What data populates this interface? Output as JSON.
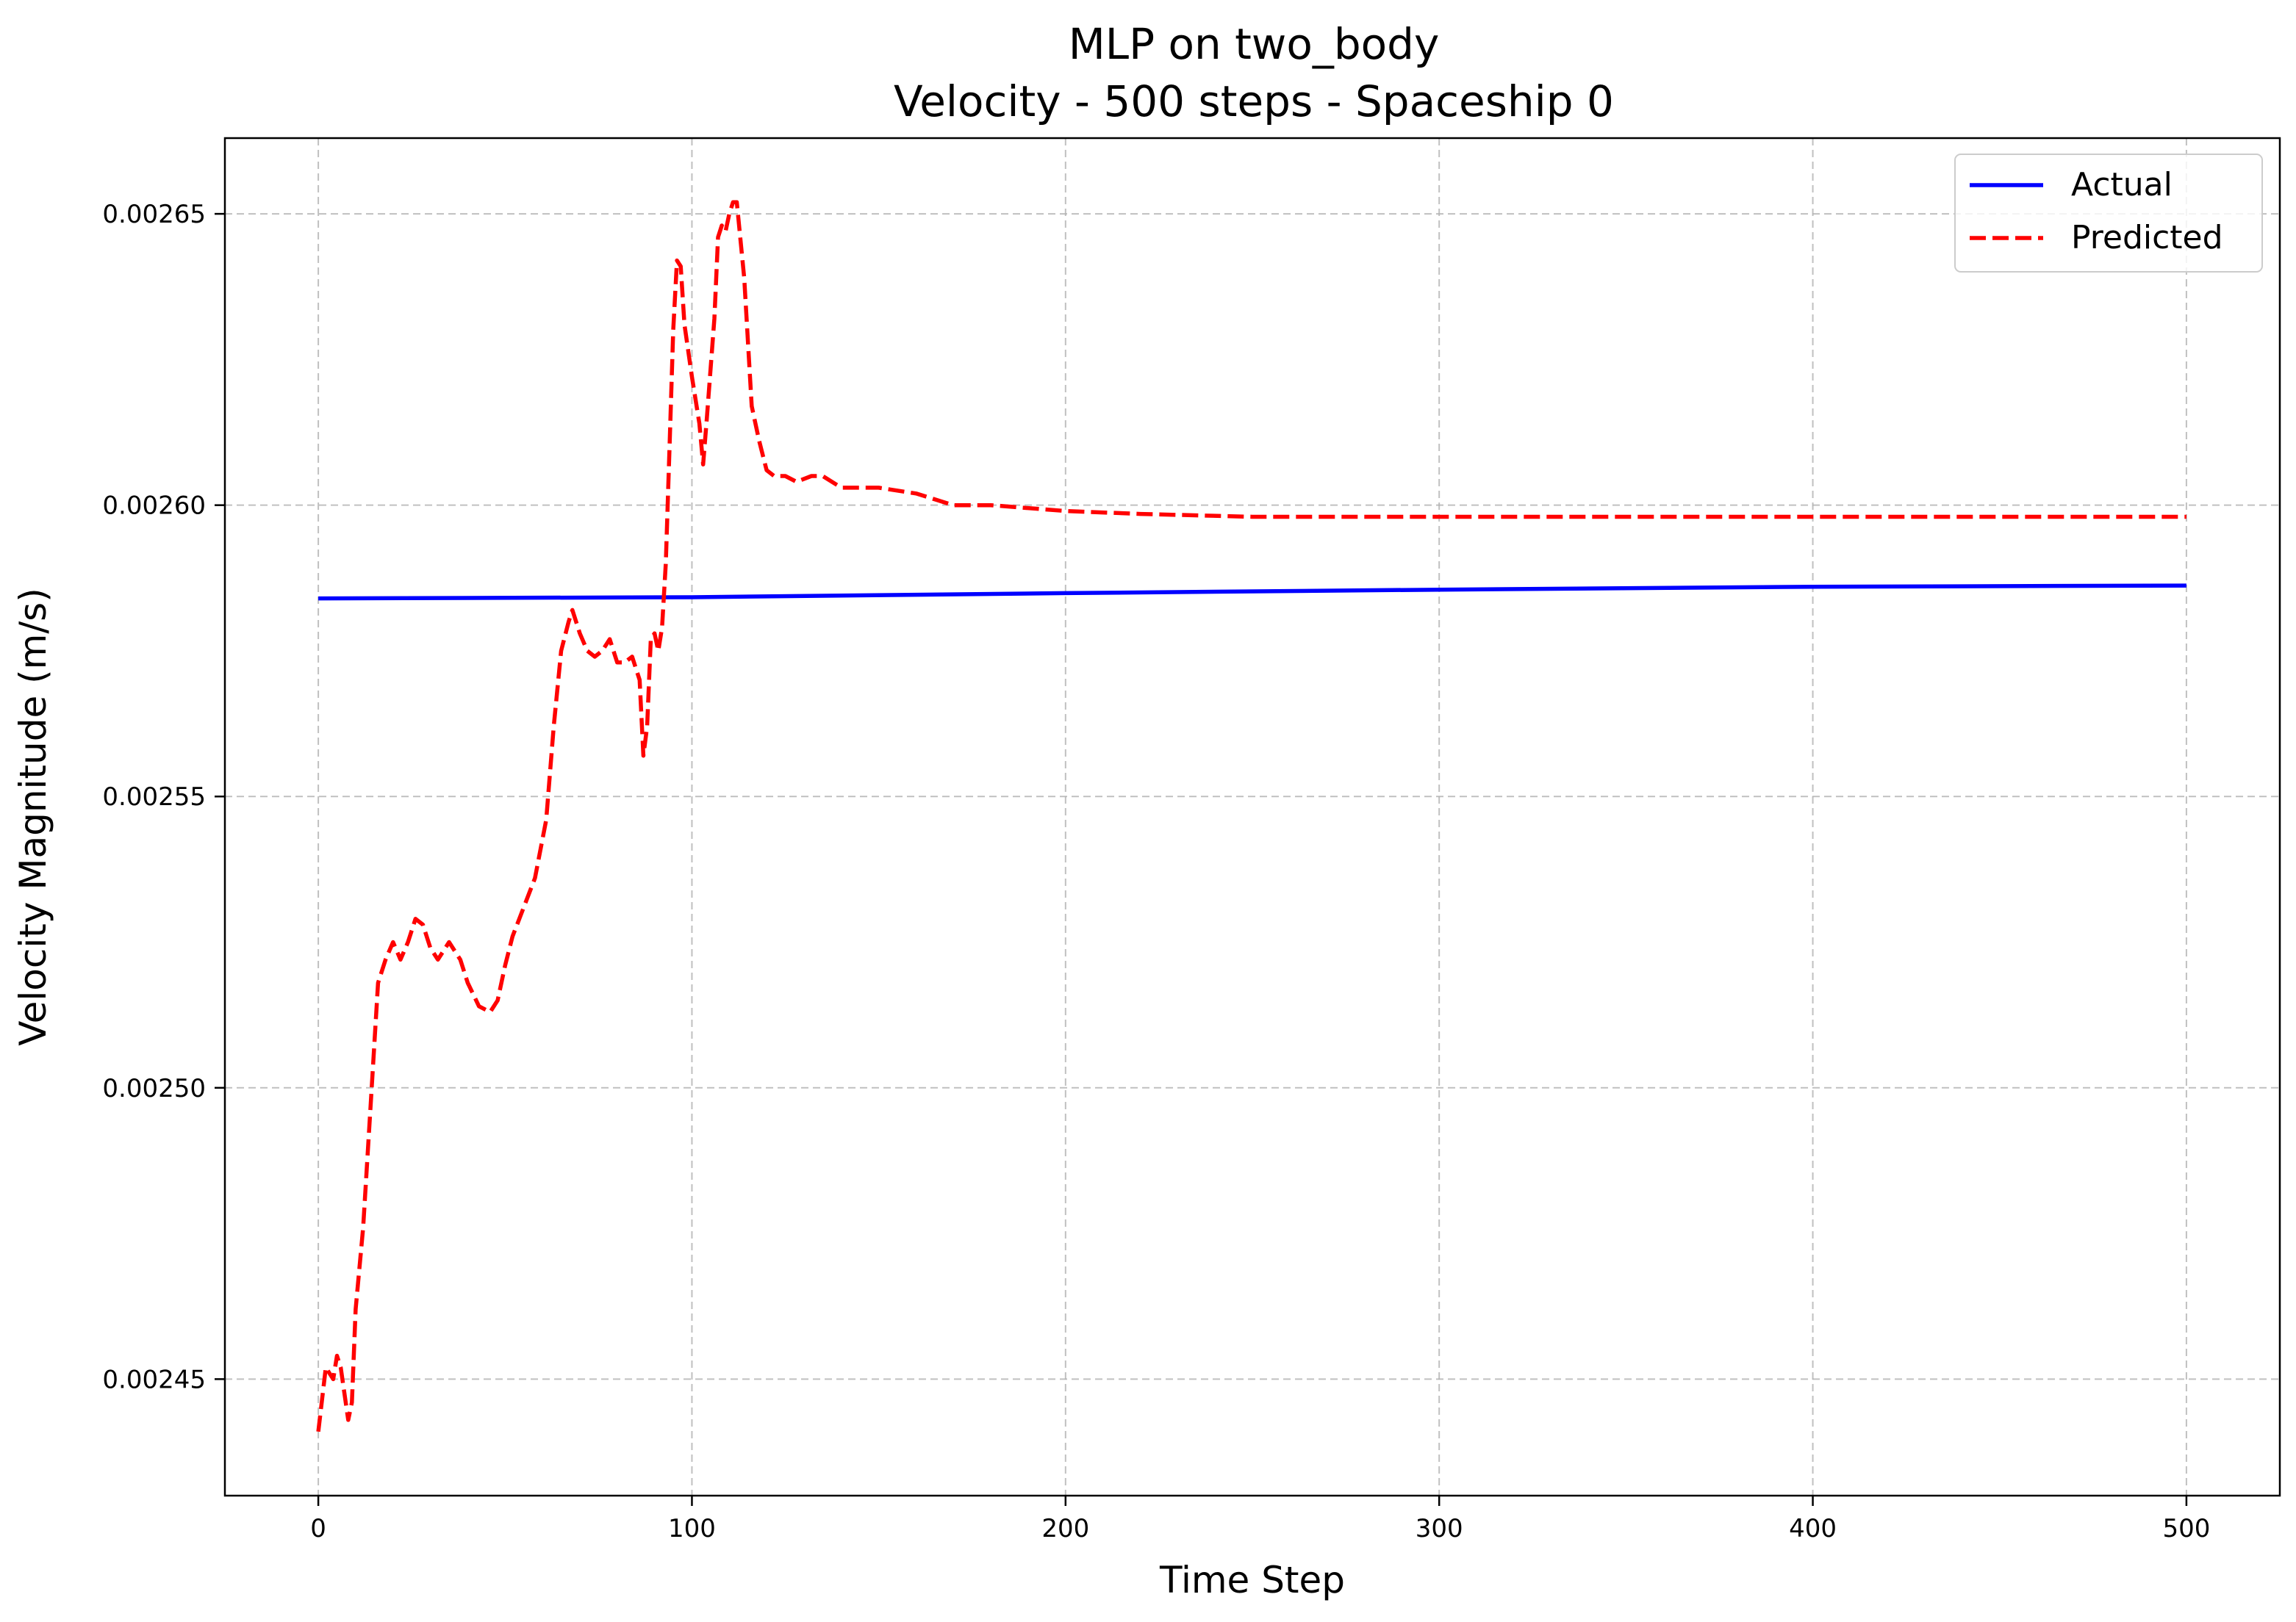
{
  "chart_data": {
    "type": "line",
    "title": "MLP on two_body",
    "subtitle": "Velocity - 500 steps - Spaceship 0",
    "xlabel": "Time Step",
    "ylabel": "Velocity Magnitude (m/s)",
    "xlim": [
      -25,
      525
    ],
    "ylim": [
      0.00243,
      0.002663
    ],
    "xticks": [
      0,
      100,
      200,
      300,
      400,
      500
    ],
    "xtick_labels": [
      "0",
      "100",
      "200",
      "300",
      "400",
      "500"
    ],
    "yticks": [
      0.00245,
      0.0025,
      0.00255,
      0.0026,
      0.00265
    ],
    "ytick_labels": [
      "0.00245",
      "0.00250",
      "0.00255",
      "0.00260",
      "0.00265"
    ],
    "grid": true,
    "legend_position": "top-right",
    "series": [
      {
        "name": "Actual",
        "color": "#0000ff",
        "style": "solid",
        "x": [
          0,
          100,
          200,
          300,
          400,
          500
        ],
        "y": [
          0.002584,
          0.0025842,
          0.0025849,
          0.0025855,
          0.002586,
          0.0025862
        ]
      },
      {
        "name": "Predicted",
        "color": "#ff0000",
        "style": "dashed",
        "x": [
          0,
          2,
          4,
          5,
          6,
          8,
          9,
          10,
          12,
          14,
          16,
          18,
          20,
          22,
          24,
          26,
          28,
          30,
          32,
          35,
          38,
          40,
          43,
          46,
          48,
          50,
          52,
          55,
          58,
          61,
          63,
          65,
          67,
          68,
          70,
          72,
          74,
          76,
          78,
          80,
          82,
          84,
          86,
          87,
          88,
          89,
          90,
          91,
          92,
          93,
          94,
          95,
          96,
          97,
          98,
          100,
          102,
          103,
          104,
          106,
          107,
          108,
          109,
          110,
          111,
          112,
          114,
          116,
          118,
          120,
          122,
          125,
          128,
          132,
          135,
          140,
          150,
          160,
          170,
          180,
          200,
          220,
          250,
          300,
          350,
          400,
          450,
          500
        ],
        "y": [
          0.002441,
          0.002452,
          0.00245,
          0.002454,
          0.002452,
          0.002443,
          0.002446,
          0.002462,
          0.002476,
          0.002497,
          0.002518,
          0.002522,
          0.002525,
          0.002522,
          0.002525,
          0.002529,
          0.002528,
          0.002524,
          0.002522,
          0.002525,
          0.002522,
          0.002518,
          0.002514,
          0.002513,
          0.002515,
          0.002521,
          0.002526,
          0.002531,
          0.002536,
          0.002546,
          0.002562,
          0.002575,
          0.00258,
          0.002582,
          0.002578,
          0.002575,
          0.002574,
          0.002575,
          0.002577,
          0.002573,
          0.002573,
          0.002574,
          0.00257,
          0.002557,
          0.002562,
          0.002577,
          0.002578,
          0.002575,
          0.002579,
          0.00259,
          0.00261,
          0.00263,
          0.002642,
          0.002641,
          0.002631,
          0.002622,
          0.002614,
          0.002607,
          0.002615,
          0.002632,
          0.002646,
          0.002648,
          0.002647,
          0.00265,
          0.002652,
          0.002652,
          0.002639,
          0.002617,
          0.002611,
          0.002606,
          0.002605,
          0.002605,
          0.002604,
          0.002605,
          0.002605,
          0.002603,
          0.002603,
          0.002602,
          0.0026,
          0.0026,
          0.002599,
          0.0025985,
          0.002598,
          0.002598,
          0.002598,
          0.002598,
          0.002598,
          0.002598
        ]
      }
    ]
  }
}
